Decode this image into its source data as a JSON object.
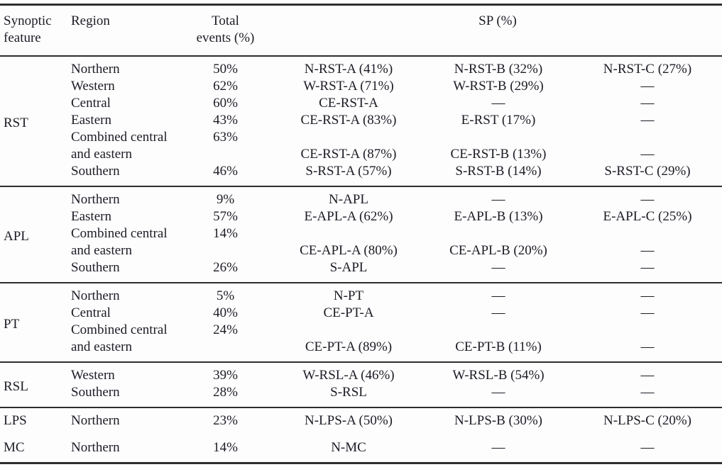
{
  "colors": {
    "text": "#1c1c26",
    "rule": "#2e2e2e",
    "background": "#fdfdfd"
  },
  "header": {
    "feature_line1": "Synoptic",
    "feature_line2": "feature",
    "region": "Region",
    "total_line1": "Total",
    "total_line2": "events (%)",
    "sp": "SP (%)"
  },
  "groups": [
    {
      "feature": "RST",
      "rows": [
        {
          "region": "Northern",
          "total": "50%",
          "sp_a": "N-RST-A (41%)",
          "sp_b": "N-RST-B (32%)",
          "sp_c": "N-RST-C (27%)"
        },
        {
          "region": "Western",
          "total": "62%",
          "sp_a": "W-RST-A (71%)",
          "sp_b": "W-RST-B (29%)",
          "sp_c": "—"
        },
        {
          "region": "Central",
          "total": "60%",
          "sp_a": "CE-RST-A",
          "sp_b": "—",
          "sp_c": "—"
        },
        {
          "region": "Eastern",
          "total": "43%",
          "sp_a": "CE-RST-A (83%)",
          "sp_b": "E-RST (17%)",
          "sp_c": "—"
        },
        {
          "region": "Combined central",
          "total": "63%",
          "sp_a": "",
          "sp_b": "",
          "sp_c": ""
        },
        {
          "region": "and eastern",
          "total": "",
          "sp_a": "CE-RST-A (87%)",
          "sp_b": "CE-RST-B (13%)",
          "sp_c": "—"
        },
        {
          "region": "Southern",
          "total": "46%",
          "sp_a": "S-RST-A (57%)",
          "sp_b": "S-RST-B (14%)",
          "sp_c": "S-RST-C (29%)"
        }
      ]
    },
    {
      "feature": "APL",
      "rows": [
        {
          "region": "Northern",
          "total": "9%",
          "sp_a": "N-APL",
          "sp_b": "—",
          "sp_c": "—"
        },
        {
          "region": "Eastern",
          "total": "57%",
          "sp_a": "E-APL-A (62%)",
          "sp_b": "E-APL-B (13%)",
          "sp_c": "E-APL-C (25%)"
        },
        {
          "region": "Combined central",
          "total": "14%",
          "sp_a": "",
          "sp_b": "",
          "sp_c": ""
        },
        {
          "region": "and eastern",
          "total": "",
          "sp_a": "CE-APL-A (80%)",
          "sp_b": "CE-APL-B (20%)",
          "sp_c": "—"
        },
        {
          "region": "Southern",
          "total": "26%",
          "sp_a": "S-APL",
          "sp_b": "—",
          "sp_c": "—"
        }
      ]
    },
    {
      "feature": "PT",
      "rows": [
        {
          "region": "Northern",
          "total": "5%",
          "sp_a": "N-PT",
          "sp_b": "—",
          "sp_c": "—"
        },
        {
          "region": "Central",
          "total": "40%",
          "sp_a": "CE-PT-A",
          "sp_b": "—",
          "sp_c": "—"
        },
        {
          "region": "Combined central",
          "total": "24%",
          "sp_a": "",
          "sp_b": "",
          "sp_c": ""
        },
        {
          "region": "and eastern",
          "total": "",
          "sp_a": "CE-PT-A (89%)",
          "sp_b": "CE-PT-B (11%)",
          "sp_c": "—"
        }
      ]
    },
    {
      "feature": "RSL",
      "rows": [
        {
          "region": "Western",
          "total": "39%",
          "sp_a": "W-RSL-A (46%)",
          "sp_b": "W-RSL-B (54%)",
          "sp_c": "—"
        },
        {
          "region": "Southern",
          "total": "28%",
          "sp_a": "S-RSL",
          "sp_b": "—",
          "sp_c": "—"
        }
      ]
    },
    {
      "feature": "LPS",
      "rows": [
        {
          "region": "Northern",
          "total": "23%",
          "sp_a": "N-LPS-A (50%)",
          "sp_b": "N-LPS-B (30%)",
          "sp_c": "N-LPS-C (20%)"
        }
      ]
    },
    {
      "feature": "MC",
      "rows": [
        {
          "region": "Northern",
          "total": "14%",
          "sp_a": "N-MC",
          "sp_b": "—",
          "sp_c": "—"
        }
      ]
    }
  ]
}
